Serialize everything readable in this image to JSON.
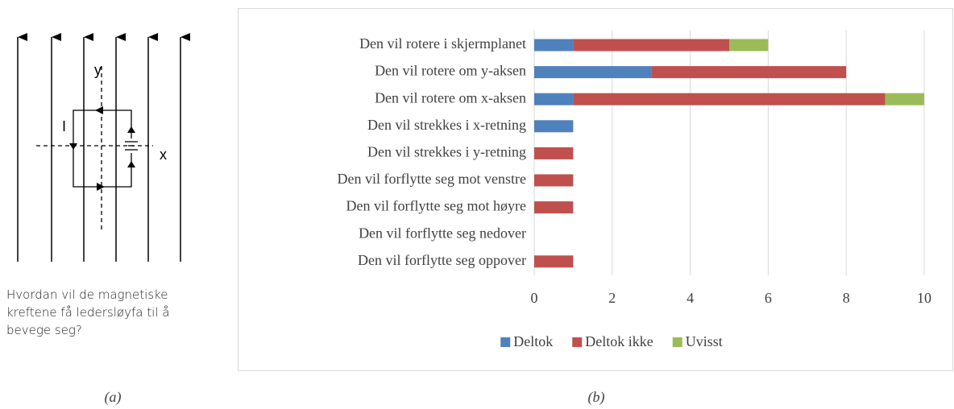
{
  "diagram": {
    "y_label": "y",
    "x_label": "x",
    "current_label": "I",
    "question": [
      "Hvordan vil de magnetiske",
      "kreftene få ledersløyfa til å",
      "bevege seg?"
    ]
  },
  "captions": [
    "(a)",
    "(b)"
  ],
  "chart_data": {
    "type": "stacked-barh",
    "categories": [
      "Den vil rotere i skjermplanet",
      "Den vil rotere om y-aksen",
      "Den vil rotere om x-aksen",
      "Den vil strekkes i x-retning",
      "Den vil strekkes i y-retning",
      "Den vil forflytte seg mot venstre",
      "Den vil forflytte seg mot høyre",
      "Den vil forflytte seg nedover",
      "Den vil forflytte seg oppover"
    ],
    "series": [
      {
        "name": "Deltok",
        "color": "#4f81bd",
        "values": [
          1,
          3,
          1,
          1,
          0,
          0,
          0,
          0,
          0
        ]
      },
      {
        "name": "Deltok ikke",
        "color": "#c0504d",
        "values": [
          4,
          5,
          8,
          0,
          1,
          1,
          1,
          0,
          1
        ]
      },
      {
        "name": "Uvisst",
        "color": "#9bbb59",
        "values": [
          1,
          0,
          1,
          0,
          0,
          0,
          0,
          0,
          0
        ]
      }
    ],
    "xlim": [
      0,
      10
    ],
    "xticks": [
      0,
      2,
      4,
      6,
      8,
      10
    ],
    "grid": true,
    "legend": "bottom"
  }
}
